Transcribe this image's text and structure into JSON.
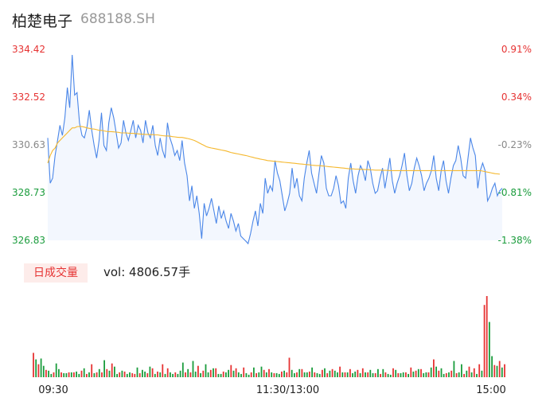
{
  "header": {
    "name": "柏楚电子",
    "code": "688188.SH"
  },
  "volume_panel": {
    "tag_label": "日成交量",
    "vol_text": "vol: 4806.57手"
  },
  "colors": {
    "price_line": "#4a86e8",
    "avg_line": "#f5b82e",
    "area_fill": "#f3f7fe",
    "up": "#e63333",
    "down": "#1a9c3c",
    "neutral_axis": "#888888"
  },
  "chart_data": [
    {
      "type": "line",
      "title": "",
      "x_tick_labels": [
        "09:30",
        "11:30/13:00",
        "15:00"
      ],
      "y_tick_labels": [
        "334.42",
        "332.52",
        "330.63",
        "328.73",
        "326.83"
      ],
      "y_right_tick_labels": [
        "0.91%",
        "0.34%",
        "-0.23%",
        "-0.81%",
        "-1.38%"
      ],
      "ylim": [
        326.83,
        334.42
      ],
      "series": [
        {
          "values": [
            330.9,
            329.1,
            329.3,
            330.2,
            330.8,
            331.4,
            331.0,
            331.7,
            332.9,
            332.1,
            334.2,
            332.6,
            332.7,
            331.5,
            331.0,
            330.9,
            331.3,
            332.0,
            331.2,
            330.6,
            330.1,
            330.8,
            331.9,
            330.6,
            330.4,
            331.5,
            332.1,
            331.7,
            331.1,
            330.5,
            330.7,
            331.6,
            331.1,
            330.8,
            331.2,
            331.6,
            330.9,
            331.4,
            331.2,
            330.7,
            331.6,
            331.1,
            330.9,
            331.4,
            330.6,
            330.2,
            330.9,
            330.4,
            330.1,
            331.5,
            330.9,
            330.6,
            330.2,
            330.4,
            330.0,
            330.8,
            329.9,
            329.4,
            328.4,
            329.0,
            328.1,
            328.6,
            327.9,
            326.9,
            328.3,
            327.8,
            328.1,
            328.5,
            328.0,
            327.5,
            328.2,
            327.7,
            328.0,
            327.6,
            327.3,
            327.9,
            327.6,
            327.2,
            327.5,
            327.0,
            326.9,
            326.8,
            326.7,
            327.1,
            327.6,
            328.0,
            327.4,
            328.3,
            327.9,
            329.3,
            328.7,
            329.0,
            328.8,
            330.0,
            329.5,
            329.2,
            328.6,
            328.0,
            328.3,
            328.7,
            329.7,
            328.9,
            329.3,
            328.6,
            328.4,
            329.3,
            329.9,
            330.4,
            329.5,
            329.1,
            328.7,
            329.5,
            330.2,
            329.9,
            328.9,
            328.6,
            328.6,
            328.9,
            329.4,
            329.0,
            328.3,
            328.4,
            328.1,
            329.3,
            329.9,
            329.2,
            328.7,
            329.4,
            329.8,
            329.6,
            329.2,
            330.0,
            329.7,
            329.1,
            328.7,
            328.8,
            329.3,
            329.7,
            328.9,
            329.5,
            330.1,
            329.2,
            328.7,
            329.1,
            329.4,
            329.8,
            330.3,
            329.4,
            328.8,
            329.1,
            329.7,
            330.1,
            329.8,
            329.4,
            328.8,
            329.1,
            329.3,
            329.6,
            330.2,
            329.3,
            328.8,
            329.6,
            330.0,
            329.2,
            328.7,
            329.3,
            329.8,
            330.0,
            330.6,
            330.1,
            329.4,
            329.3,
            330.1,
            330.9,
            330.5,
            330.2,
            328.9,
            329.6,
            329.9,
            329.6,
            328.4,
            328.6,
            328.9,
            329.1,
            328.6,
            328.8,
            328.9
          ]
        },
        {
          "values": [
            329.9,
            330.2,
            330.4,
            330.5,
            330.7,
            330.8,
            330.9,
            331.0,
            331.1,
            331.2,
            331.3,
            331.3,
            331.35,
            331.36,
            331.35,
            331.33,
            331.3,
            331.28,
            331.26,
            331.25,
            331.23,
            331.2,
            331.2,
            331.18,
            331.16,
            331.15,
            331.15,
            331.14,
            331.13,
            331.12,
            331.1,
            331.1,
            331.1,
            331.09,
            331.08,
            331.08,
            331.07,
            331.06,
            331.05,
            331.05,
            331.04,
            331.04,
            331.03,
            331.03,
            331.02,
            331.02,
            331.0,
            330.99,
            330.98,
            330.98,
            330.97,
            330.95,
            330.94,
            330.93,
            330.92,
            330.92,
            330.9,
            330.88,
            330.86,
            330.83,
            330.8,
            330.75,
            330.7,
            330.65,
            330.6,
            330.55,
            330.52,
            330.5,
            330.48,
            330.46,
            330.44,
            330.42,
            330.4,
            330.38,
            330.35,
            330.32,
            330.3,
            330.28,
            330.26,
            330.24,
            330.22,
            330.2,
            330.18,
            330.15,
            330.13,
            330.1,
            330.08,
            330.06,
            330.04,
            330.02,
            330.0,
            329.99,
            329.98,
            329.97,
            329.96,
            329.95,
            329.94,
            329.93,
            329.92,
            329.91,
            329.9,
            329.89,
            329.88,
            329.87,
            329.86,
            329.85,
            329.84,
            329.83,
            329.82,
            329.81,
            329.8,
            329.8,
            329.79,
            329.78,
            329.77,
            329.76,
            329.75,
            329.74,
            329.73,
            329.72,
            329.71,
            329.7,
            329.69,
            329.68,
            329.67,
            329.67,
            329.66,
            329.66,
            329.65,
            329.65,
            329.64,
            329.64,
            329.63,
            329.63,
            329.62,
            329.62,
            329.62,
            329.61,
            329.61,
            329.61,
            329.6,
            329.6,
            329.6,
            329.6,
            329.6,
            329.6,
            329.6,
            329.6,
            329.6,
            329.6,
            329.6,
            329.6,
            329.6,
            329.6,
            329.6,
            329.6,
            329.6,
            329.6,
            329.6,
            329.6,
            329.6,
            329.6,
            329.6,
            329.6,
            329.6,
            329.6,
            329.6,
            329.6,
            329.6,
            329.6,
            329.6,
            329.6,
            329.6,
            329.6,
            329.6,
            329.6,
            329.6,
            329.6,
            329.58,
            329.56,
            329.54,
            329.52,
            329.5,
            329.48,
            329.47,
            329.46
          ]
        }
      ]
    },
    {
      "type": "bar",
      "title": "",
      "ylim": [
        0,
        1000
      ],
      "values": [
        300,
        220,
        160,
        230,
        140,
        90,
        80,
        40,
        60,
        170,
        100,
        60,
        50,
        50,
        60,
        60,
        60,
        70,
        40,
        80,
        110,
        40,
        60,
        160,
        50,
        60,
        100,
        60,
        210,
        100,
        80,
        170,
        130,
        40,
        60,
        80,
        70,
        40,
        60,
        50,
        40,
        120,
        50,
        90,
        70,
        50,
        130,
        110,
        40,
        70,
        60,
        160,
        40,
        110,
        60,
        40,
        60,
        40,
        80,
        180,
        60,
        100,
        60,
        200,
        70,
        140,
        50,
        80,
        160,
        60,
        90,
        110,
        110,
        40,
        40,
        70,
        60,
        90,
        150,
        80,
        110,
        60,
        40,
        120,
        50,
        30,
        60,
        120,
        50,
        60,
        130,
        90,
        60,
        100,
        60,
        50,
        50,
        40,
        70,
        80,
        60,
        240,
        90,
        50,
        60,
        100,
        100,
        60,
        60,
        70,
        120,
        60,
        50,
        40,
        90,
        110,
        50,
        80,
        100,
        80,
        60,
        130,
        60,
        60,
        60,
        100,
        50,
        70,
        90,
        50,
        110,
        60,
        60,
        90,
        50,
        50,
        100,
        40,
        100,
        60,
        40,
        30,
        110,
        90,
        50,
        50,
        60,
        60,
        40,
        120,
        70,
        80,
        100,
        100,
        50,
        60,
        60,
        120,
        220,
        130,
        80,
        110,
        40,
        50,
        60,
        80,
        200,
        50,
        60,
        160,
        40,
        80,
        130,
        60,
        110,
        40,
        160,
        80,
        890,
        1000,
        680,
        260,
        150,
        140,
        200,
        120,
        160
      ],
      "up_flags": [
        1,
        0,
        1,
        0,
        0,
        1,
        0,
        0,
        1,
        0,
        0,
        1,
        0,
        0,
        1,
        0,
        1,
        0,
        0,
        1,
        0,
        1,
        0,
        1,
        0,
        1,
        0,
        1,
        0,
        1,
        0,
        1,
        0,
        0,
        1,
        0,
        1,
        0,
        0,
        1,
        1,
        0,
        1,
        0,
        0,
        1,
        0,
        1,
        0,
        1,
        0,
        1,
        0,
        1,
        0,
        0,
        1,
        0,
        0,
        0,
        1,
        0,
        1,
        0,
        0,
        1,
        0,
        1,
        0,
        0,
        1,
        0,
        1,
        0,
        0,
        1,
        0,
        0,
        1,
        0,
        1,
        0,
        0,
        1,
        0,
        0,
        1,
        0,
        1,
        0,
        0,
        1,
        0,
        1,
        0,
        1,
        0,
        0,
        1,
        0,
        1,
        1,
        0,
        0,
        1,
        0,
        1,
        0,
        0,
        1,
        0,
        1,
        0,
        0,
        1,
        0,
        1,
        0,
        1,
        0,
        0,
        1,
        0,
        1,
        0,
        1,
        0,
        0,
        1,
        0,
        1,
        0,
        1,
        0,
        0,
        1,
        0,
        1,
        0,
        1,
        0,
        0,
        1,
        0,
        1,
        0,
        0,
        1,
        0,
        1,
        0,
        1,
        0,
        1,
        0,
        0,
        1,
        0,
        1,
        0,
        1,
        0,
        0,
        1,
        0,
        1,
        0,
        1,
        0,
        0,
        1,
        0,
        1,
        0,
        1,
        0,
        1,
        0,
        1,
        1,
        0,
        0,
        1,
        0,
        1,
        0,
        1
      ]
    }
  ]
}
